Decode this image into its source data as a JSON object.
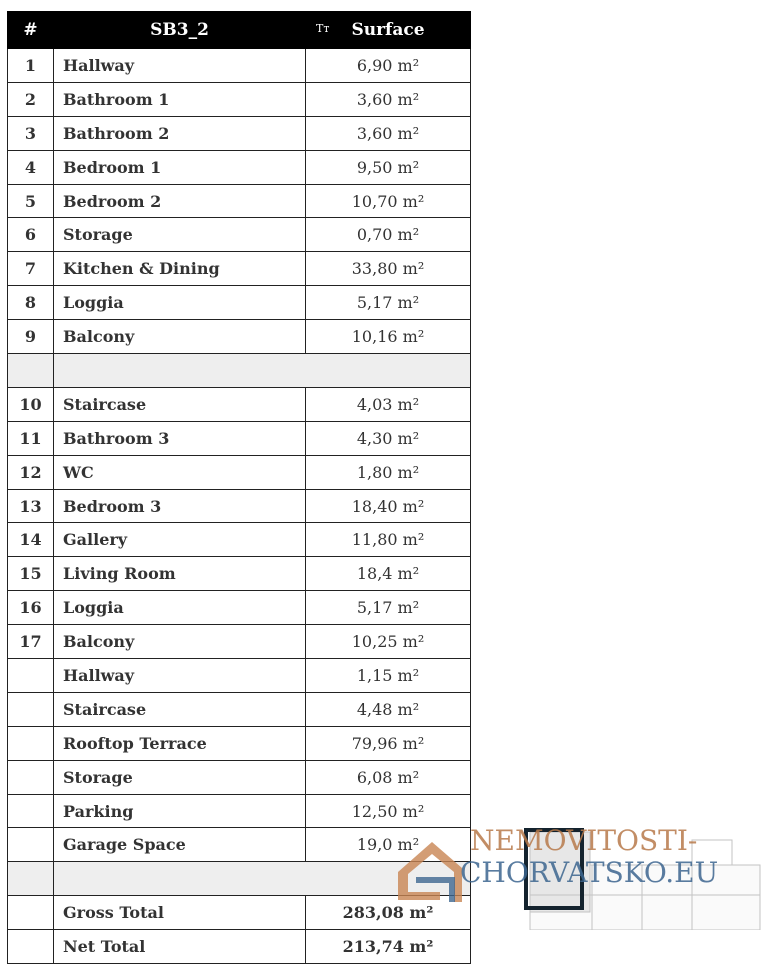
{
  "table": {
    "headers": {
      "num": "#",
      "name": "SB3_2",
      "type_icon": "Tт",
      "surface": "Surface"
    },
    "rows": [
      {
        "num": "1",
        "name": "Hallway",
        "surface": "6,90 m²"
      },
      {
        "num": "2",
        "name": "Bathroom 1",
        "surface": "3,60 m²"
      },
      {
        "num": "3",
        "name": "Bathroom 2",
        "surface": "3,60 m²"
      },
      {
        "num": "4",
        "name": "Bedroom 1",
        "surface": "9,50 m²"
      },
      {
        "num": "5",
        "name": "Bedroom 2",
        "surface": "10,70 m²"
      },
      {
        "num": "6",
        "name": "Storage",
        "surface": "0,70 m²"
      },
      {
        "num": "7",
        "name": "Kitchen & Dining",
        "surface": "33,80 m²"
      },
      {
        "num": "8",
        "name": "Loggia",
        "surface": "5,17 m²"
      },
      {
        "num": "9",
        "name": "Balcony",
        "surface": "10,16 m²"
      },
      {
        "blank": true
      },
      {
        "num": "10",
        "name": "Staircase",
        "surface": "4,03 m²"
      },
      {
        "num": "11",
        "name": "Bathroom 3",
        "surface": "4,30 m²"
      },
      {
        "num": "12",
        "name": "WC",
        "surface": "1,80 m²"
      },
      {
        "num": "13",
        "name": "Bedroom 3",
        "surface": "18,40 m²"
      },
      {
        "num": "14",
        "name": "Gallery",
        "surface": "11,80 m²"
      },
      {
        "num": "15",
        "name": "Living Room",
        "surface": "18,4 m²"
      },
      {
        "num": "16",
        "name": "Loggia",
        "surface": "5,17 m²"
      },
      {
        "num": "17",
        "name": "Balcony",
        "surface": "10,25 m²"
      },
      {
        "num": "",
        "name": "Hallway",
        "surface": "1,15 m²"
      },
      {
        "num": "",
        "name": "Staircase",
        "surface": "4,48 m²"
      },
      {
        "num": "",
        "name": "Rooftop Terrace",
        "surface": "79,96 m²"
      },
      {
        "num": "",
        "name": "Storage",
        "surface": "6,08 m²"
      },
      {
        "num": "",
        "name": "Parking",
        "surface": "12,50 m²"
      },
      {
        "num": "",
        "name": "Garage Space",
        "surface": "19,0 m²"
      },
      {
        "blank": true
      },
      {
        "num": "",
        "name": "Gross Total",
        "surface": "283,08 m²",
        "total": true
      },
      {
        "num": "",
        "name": "Net Total",
        "surface": "213,74 m²",
        "total": true
      }
    ]
  },
  "watermark": {
    "line1": "NEMOVITOSTI-",
    "line2": "CHORVATSKO.EU",
    "color1": "#b87a4b",
    "color2": "#3d6690"
  }
}
